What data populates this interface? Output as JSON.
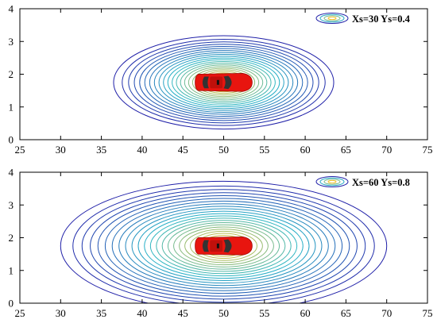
{
  "chart_data": [
    {
      "type": "contour",
      "xlim": [
        25,
        75
      ],
      "ylim": [
        0,
        4
      ],
      "x_ticks": [
        25,
        30,
        35,
        40,
        45,
        50,
        55,
        60,
        65,
        70,
        75
      ],
      "y_ticks": [
        0,
        1,
        2,
        3,
        4
      ],
      "grid": false,
      "center": {
        "x": 50,
        "y": 1.75
      },
      "outer_contour": {
        "x_min": 36.5,
        "x_max": 63.5,
        "y_min": 0.35,
        "y_max": 3.2
      },
      "contour_count": 22,
      "legend": {
        "placement": "top-right",
        "text": "Xs=30 Ys=0.4"
      },
      "object": {
        "label": "car",
        "x_min": 46.5,
        "x_max": 53.5,
        "y_min": 1.45,
        "y_max": 2.05,
        "color": "#e8150f"
      }
    },
    {
      "type": "contour",
      "xlim": [
        25,
        75
      ],
      "ylim": [
        0,
        4
      ],
      "x_ticks": [
        25,
        30,
        35,
        40,
        45,
        50,
        55,
        60,
        65,
        70,
        75
      ],
      "y_ticks": [
        0,
        1,
        2,
        3,
        4
      ],
      "grid": false,
      "center": {
        "x": 50,
        "y": 1.75
      },
      "outer_contour": {
        "x_min": 30,
        "x_max": 70,
        "y_min": -0.2,
        "y_max": 3.75
      },
      "contour_count": 24,
      "legend": {
        "placement": "top-right",
        "text": "Xs=60 Ys=0.8"
      },
      "object": {
        "label": "car",
        "x_min": 46.5,
        "x_max": 53.5,
        "y_min": 1.45,
        "y_max": 2.05,
        "color": "#e8150f"
      }
    }
  ],
  "colors": {
    "contour_outer": "#1f1fa8",
    "contour_mid": "#27b6c8",
    "contour_inner": "#f2c12e",
    "car_body": "#e8150f",
    "car_glass": "#333333"
  }
}
